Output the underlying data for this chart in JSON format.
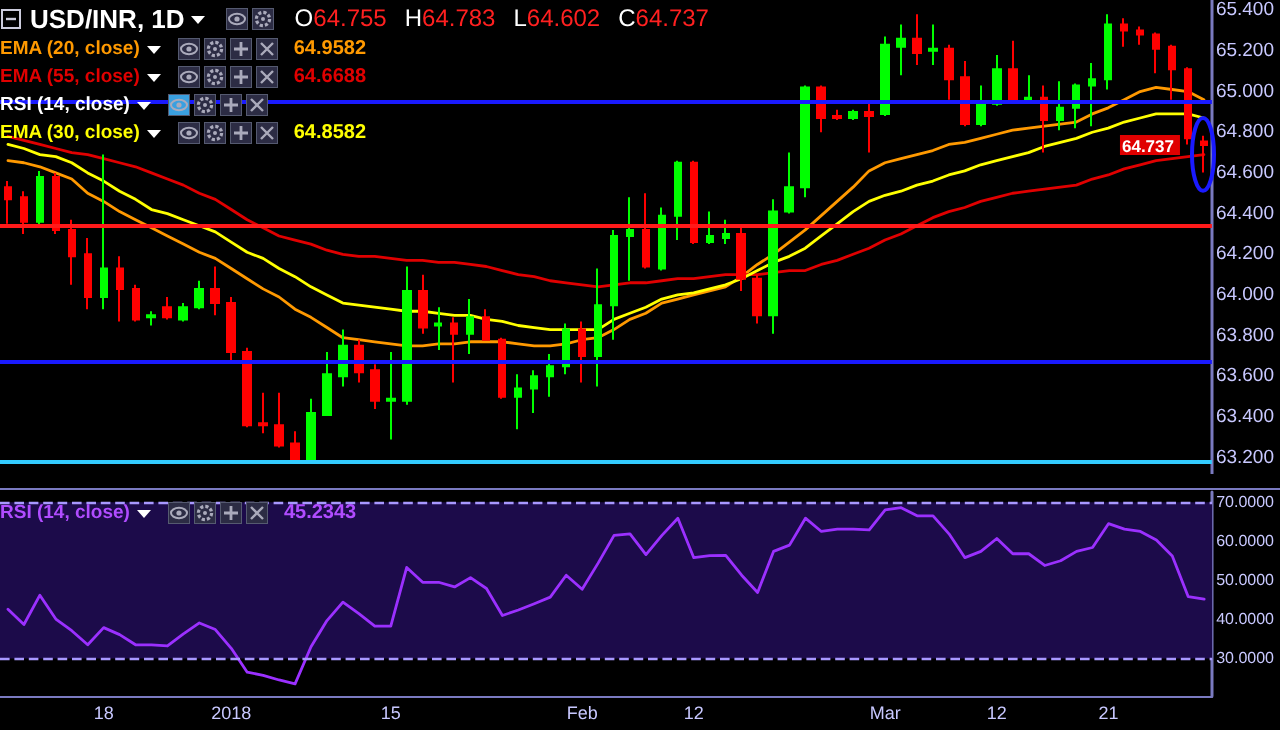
{
  "chart_data": [
    {
      "type": "candlestick",
      "title": "USD/INR, 1D",
      "categories": [
        null,
        null,
        null,
        null,
        null,
        null,
        null,
        null,
        null,
        null,
        null,
        null,
        null,
        null,
        null,
        null,
        null,
        null,
        null,
        null,
        null,
        null,
        null,
        null,
        null,
        null,
        null,
        null,
        null,
        null,
        null,
        null,
        null,
        null,
        null,
        null,
        null,
        null,
        null,
        null,
        null,
        null,
        null,
        null,
        null,
        null,
        null,
        null,
        null,
        null,
        null,
        null,
        null,
        null,
        null,
        null,
        null,
        null,
        null,
        null,
        null,
        null,
        null,
        null,
        null,
        null,
        null,
        null,
        null,
        null,
        null,
        null,
        null,
        null,
        null,
        null
      ],
      "ohlc": [
        [
          64.53,
          64.56,
          64.35,
          64.47
        ],
        [
          64.48,
          64.51,
          64.3,
          64.36
        ],
        [
          64.36,
          64.61,
          64.33,
          64.58
        ],
        [
          64.58,
          64.6,
          64.3,
          64.32
        ],
        [
          64.32,
          64.37,
          64.05,
          64.19
        ],
        [
          64.2,
          64.28,
          63.93,
          63.99
        ],
        [
          63.99,
          64.69,
          63.93,
          64.13
        ],
        [
          64.13,
          64.19,
          63.87,
          64.03
        ],
        [
          64.03,
          64.05,
          63.87,
          63.88
        ],
        [
          63.89,
          63.92,
          63.85,
          63.9
        ],
        [
          63.94,
          63.99,
          63.88,
          63.89
        ],
        [
          63.88,
          63.96,
          63.87,
          63.94
        ],
        [
          63.94,
          64.07,
          63.93,
          64.03
        ],
        [
          64.03,
          64.14,
          63.9,
          63.96
        ],
        [
          63.96,
          63.99,
          63.68,
          63.72
        ],
        [
          63.72,
          63.74,
          63.35,
          63.36
        ],
        [
          63.37,
          63.52,
          63.32,
          63.36
        ],
        [
          63.36,
          63.52,
          63.25,
          63.26
        ],
        [
          63.27,
          63.33,
          63.19,
          63.19
        ],
        [
          63.19,
          63.49,
          63.18,
          63.42
        ],
        [
          63.41,
          63.72,
          63.41,
          63.61
        ],
        [
          63.6,
          63.83,
          63.55,
          63.75
        ],
        [
          63.75,
          63.78,
          63.57,
          63.62
        ],
        [
          63.63,
          63.66,
          63.44,
          63.48
        ],
        [
          63.48,
          63.72,
          63.29,
          63.49
        ],
        [
          63.48,
          64.14,
          63.46,
          64.02
        ],
        [
          64.02,
          64.1,
          63.81,
          63.84
        ],
        [
          63.85,
          63.94,
          63.73,
          63.86
        ],
        [
          63.86,
          63.89,
          63.57,
          63.81
        ],
        [
          63.81,
          63.98,
          63.71,
          63.89
        ],
        [
          63.89,
          63.93,
          63.78,
          63.78
        ],
        [
          63.78,
          63.79,
          63.49,
          63.5
        ],
        [
          63.5,
          63.61,
          63.34,
          63.54
        ],
        [
          63.54,
          63.63,
          63.42,
          63.6
        ],
        [
          63.6,
          63.71,
          63.5,
          63.65
        ],
        [
          63.65,
          63.86,
          63.61,
          63.83
        ],
        [
          63.83,
          63.87,
          63.57,
          63.7
        ],
        [
          63.7,
          64.13,
          63.55,
          63.95
        ],
        [
          63.95,
          64.32,
          63.78,
          64.29
        ],
        [
          64.29,
          64.48,
          64.07,
          64.32
        ],
        [
          64.32,
          64.5,
          64.13,
          64.14
        ],
        [
          64.13,
          64.43,
          64.12,
          64.39
        ],
        [
          64.39,
          64.66,
          64.27,
          64.65
        ],
        [
          64.65,
          64.66,
          64.25,
          64.26
        ],
        [
          64.26,
          64.41,
          64.25,
          64.29
        ],
        [
          64.28,
          64.37,
          64.25,
          64.3
        ],
        [
          64.3,
          64.34,
          64.02,
          64.08
        ],
        [
          64.08,
          64.1,
          63.86,
          63.9
        ],
        [
          63.9,
          64.47,
          63.81,
          64.41
        ],
        [
          64.41,
          64.7,
          64.4,
          64.53
        ],
        [
          64.53,
          65.03,
          64.48,
          65.02
        ],
        [
          65.02,
          65.03,
          64.8,
          64.87
        ],
        [
          64.88,
          64.91,
          64.86,
          64.87
        ],
        [
          64.87,
          64.91,
          64.86,
          64.9
        ],
        [
          64.9,
          64.95,
          64.7,
          64.88
        ],
        [
          64.89,
          65.27,
          64.88,
          65.23
        ],
        [
          65.22,
          65.33,
          65.08,
          65.26
        ],
        [
          65.26,
          65.38,
          65.13,
          65.19
        ],
        [
          65.2,
          65.33,
          65.13,
          65.21
        ],
        [
          65.21,
          65.23,
          64.96,
          65.06
        ],
        [
          65.07,
          65.15,
          64.83,
          64.84
        ],
        [
          64.84,
          65.03,
          64.83,
          64.94
        ],
        [
          64.94,
          65.18,
          64.93,
          65.11
        ],
        [
          65.11,
          65.25,
          64.96,
          64.96
        ],
        [
          64.96,
          65.08,
          64.95,
          64.97
        ],
        [
          64.97,
          65.03,
          64.7,
          64.86
        ],
        [
          64.86,
          65.05,
          64.81,
          64.92
        ],
        [
          64.92,
          65.04,
          64.82,
          65.03
        ],
        [
          65.03,
          65.14,
          64.83,
          65.06
        ],
        [
          65.06,
          65.38,
          65.01,
          65.33
        ],
        [
          65.33,
          65.36,
          65.22,
          65.3
        ],
        [
          65.3,
          65.32,
          65.23,
          65.28
        ],
        [
          65.28,
          65.29,
          65.09,
          65.21
        ],
        [
          65.22,
          65.23,
          64.96,
          65.11
        ],
        [
          65.11,
          65.12,
          64.74,
          64.77
        ],
        [
          64.755,
          64.783,
          64.602,
          64.737
        ]
      ],
      "colors": [
        "#ff0000",
        "#ff0000",
        "#00ff00",
        "#ff0000",
        "#ff0000",
        "#ff0000",
        "#00ff00",
        "#ff0000",
        "#ff0000",
        "#00ff00",
        "#ff0000",
        "#00ff00",
        "#00ff00",
        "#ff0000",
        "#ff0000",
        "#ff0000",
        "#ff0000",
        "#ff0000",
        "#ff0000",
        "#00ff00",
        "#00ff00",
        "#00ff00",
        "#ff0000",
        "#ff0000",
        "#00ff00",
        "#00ff00",
        "#ff0000",
        "#00ff00",
        "#ff0000",
        "#00ff00",
        "#ff0000",
        "#ff0000",
        "#00ff00",
        "#00ff00",
        "#00ff00",
        "#00ff00",
        "#ff0000",
        "#00ff00",
        "#00ff00",
        "#00ff00",
        "#ff0000",
        "#00ff00",
        "#00ff00",
        "#ff0000",
        "#00ff00",
        "#00ff00",
        "#ff0000",
        "#ff0000",
        "#00ff00",
        "#00ff00",
        "#00ff00",
        "#ff0000",
        "#ff0000",
        "#00ff00",
        "#ff0000",
        "#00ff00",
        "#00ff00",
        "#ff0000",
        "#00ff00",
        "#ff0000",
        "#ff0000",
        "#00ff00",
        "#00ff00",
        "#ff0000",
        "#00ff00",
        "#ff0000",
        "#00ff00",
        "#00ff00",
        "#00ff00",
        "#00ff00",
        "#ff0000",
        "#ff0000",
        "#ff0000",
        "#ff0000",
        "#ff0000",
        "#ff0000"
      ],
      "series": [
        {
          "type": "line",
          "name": "EMA (20, close)",
          "color": "#ff9900",
          "values": [
            64.66,
            64.65,
            64.63,
            64.6,
            64.57,
            64.5,
            64.46,
            64.41,
            64.37,
            64.33,
            64.29,
            64.25,
            64.21,
            64.18,
            64.13,
            64.08,
            64.03,
            63.99,
            63.93,
            63.89,
            63.84,
            63.79,
            63.78,
            63.77,
            63.76,
            63.75,
            63.75,
            63.76,
            63.76,
            63.77,
            63.77,
            63.77,
            63.76,
            63.75,
            63.75,
            63.76,
            63.78,
            63.79,
            63.83,
            63.88,
            63.91,
            63.96,
            63.98,
            64.0,
            64.02,
            64.04,
            64.09,
            64.15,
            64.2,
            64.26,
            64.32,
            64.39,
            64.46,
            64.53,
            64.61,
            64.65,
            64.67,
            64.69,
            64.71,
            64.74,
            64.75,
            64.77,
            64.79,
            64.81,
            64.82,
            64.83,
            64.84,
            64.85,
            64.89,
            64.92,
            64.96,
            65.0,
            65.02,
            65.01,
            65.0,
            64.96
          ]
        },
        {
          "type": "line",
          "name": "EMA (55, close)",
          "color": "#e00000",
          "values": [
            64.78,
            64.76,
            64.74,
            64.72,
            64.7,
            64.69,
            64.67,
            64.65,
            64.63,
            64.6,
            64.57,
            64.54,
            64.5,
            64.47,
            64.42,
            64.37,
            64.33,
            64.29,
            64.27,
            64.25,
            64.22,
            64.2,
            64.19,
            64.19,
            64.18,
            64.17,
            64.17,
            64.16,
            64.16,
            64.15,
            64.14,
            64.12,
            64.1,
            64.09,
            64.07,
            64.06,
            64.05,
            64.04,
            64.05,
            64.06,
            64.06,
            64.07,
            64.08,
            64.08,
            64.09,
            64.1,
            64.1,
            64.1,
            64.11,
            64.12,
            64.12,
            64.15,
            64.17,
            64.2,
            64.23,
            64.27,
            64.3,
            64.34,
            64.38,
            64.41,
            64.43,
            64.46,
            64.48,
            64.5,
            64.51,
            64.52,
            64.53,
            64.54,
            64.57,
            64.59,
            64.62,
            64.64,
            64.66,
            64.67,
            64.68,
            64.69
          ]
        },
        {
          "type": "line",
          "name": "EMA (30, close)",
          "color": "#ffff00",
          "values": [
            64.74,
            64.72,
            64.69,
            64.68,
            64.65,
            64.6,
            64.56,
            64.51,
            64.47,
            64.42,
            64.4,
            64.37,
            64.34,
            64.31,
            64.26,
            64.21,
            64.18,
            64.13,
            64.09,
            64.04,
            64.0,
            63.96,
            63.95,
            63.94,
            63.93,
            63.92,
            63.92,
            63.91,
            63.9,
            63.9,
            63.88,
            63.87,
            63.85,
            63.84,
            63.83,
            63.83,
            63.83,
            63.83,
            63.88,
            63.91,
            63.94,
            63.98,
            64.0,
            64.01,
            64.03,
            64.05,
            64.08,
            64.12,
            64.16,
            64.19,
            64.23,
            64.29,
            64.35,
            64.41,
            64.46,
            64.49,
            64.51,
            64.54,
            64.56,
            64.59,
            64.61,
            64.64,
            64.66,
            64.68,
            64.7,
            64.73,
            64.75,
            64.77,
            64.8,
            64.82,
            64.85,
            64.87,
            64.89,
            64.89,
            64.89,
            64.87
          ]
        }
      ],
      "ylim": [
        63.12,
        65.45
      ],
      "yticks": [
        {
          "value": 63.2,
          "label": "63.200"
        },
        {
          "value": 63.4,
          "label": "63.400"
        },
        {
          "value": 63.6,
          "label": "63.600"
        },
        {
          "value": 63.8,
          "label": "63.800"
        },
        {
          "value": 64.0,
          "label": "64.000"
        },
        {
          "value": 64.2,
          "label": "64.200"
        },
        {
          "value": 64.4,
          "label": "64.400"
        },
        {
          "value": 64.6,
          "label": "64.600"
        },
        {
          "value": 64.8,
          "label": "64.800"
        },
        {
          "value": 65.0,
          "label": "65.000"
        },
        {
          "value": 65.2,
          "label": "65.200"
        },
        {
          "value": 65.4,
          "label": "65.400"
        }
      ],
      "tick_labels": "y",
      "legend": "top left",
      "marker": "none",
      "ref_lines": [
        {
          "axis": "y",
          "value": 64.95,
          "color": "#1a1aff"
        },
        {
          "axis": "y",
          "value": 64.34,
          "color": "#ff1a1a"
        },
        {
          "axis": "y",
          "value": 63.67,
          "color": "#1a1aff"
        },
        {
          "axis": "y",
          "value": 63.18,
          "color": "#33ccff"
        }
      ],
      "annotations": [
        "O64.755",
        "H64.783",
        "L64.602",
        "C64.737",
        "RSI (14, close)",
        "64.9582",
        "64.6688",
        "64.8582",
        "64.737"
      ]
    },
    {
      "type": "line",
      "categories": [
        null,
        null,
        null,
        null,
        null,
        null,
        "18",
        null,
        null,
        null,
        null,
        null,
        null,
        null,
        "2018",
        null,
        null,
        null,
        null,
        null,
        null,
        null,
        null,
        null,
        "15",
        null,
        null,
        null,
        null,
        null,
        null,
        null,
        null,
        null,
        null,
        null,
        "Feb",
        null,
        null,
        null,
        null,
        null,
        null,
        "12",
        null,
        null,
        null,
        null,
        null,
        null,
        null,
        null,
        null,
        null,
        null,
        "Mar",
        null,
        null,
        null,
        null,
        null,
        null,
        "12",
        null,
        null,
        null,
        null,
        null,
        null,
        "21",
        null,
        null,
        null,
        null,
        null,
        null
      ],
      "series": [
        {
          "type": "line",
          "name": "RSI (14, close)",
          "color": "#9b30ff",
          "values": [
            42.6,
            38.7,
            46.2,
            40.1,
            37.1,
            33.5,
            37.9,
            36.1,
            33.5,
            33.5,
            33.2,
            36.3,
            39.1,
            37.4,
            32.6,
            26.5,
            25.7,
            24.5,
            23.5,
            33,
            39.7,
            44.4,
            41.5,
            38.3,
            38.3,
            53.3,
            49.5,
            49.5,
            48.3,
            50.7,
            47.9,
            41,
            42.4,
            44,
            45.7,
            51.3,
            47.7,
            54.4,
            61.5,
            61.9,
            56.6,
            61.5,
            65.9,
            55.8,
            56.3,
            56.4,
            51.3,
            46.9,
            57.4,
            59,
            65.9,
            62.5,
            63.1,
            63.1,
            62.9,
            68,
            68.6,
            66.5,
            66.5,
            61.9,
            55.8,
            57.4,
            60.7,
            56.8,
            56.8,
            53.8,
            55,
            57.4,
            58.4,
            64.5,
            63.1,
            62.5,
            60.3,
            56.2,
            45.8,
            45.2
          ]
        }
      ],
      "ylim": [
        20.4,
        72.6
      ],
      "yticks": [
        {
          "value": 30,
          "label": "30.0000"
        },
        {
          "value": 40,
          "label": "40.0000"
        },
        {
          "value": 50,
          "label": "50.0000"
        },
        {
          "value": 60,
          "label": "60.0000"
        },
        {
          "value": 70,
          "label": "70.0000"
        }
      ],
      "legend": "top left",
      "marker": "none",
      "ref_lines": [
        {
          "axis": "y",
          "value": 70,
          "color": "#a898ff",
          "line_style": "dashed"
        },
        {
          "axis": "y",
          "value": 30,
          "color": "#a898ff",
          "line_style": "dashed"
        }
      ],
      "bands": [
        {
          "axis": "y",
          "from": 30,
          "to": 70,
          "color": "#1c0b4a"
        }
      ],
      "annotations": [
        "45.2343"
      ]
    }
  ]
}
